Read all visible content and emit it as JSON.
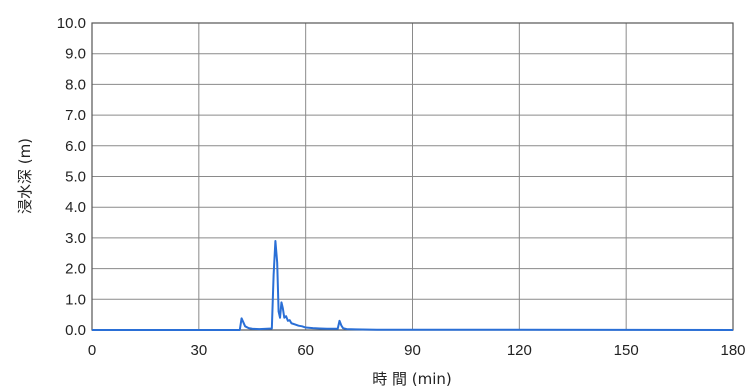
{
  "chart_data": {
    "type": "line",
    "xlabel": "時 間 (min)",
    "ylabel": "浸水深 (m)",
    "xlim": [
      0,
      180
    ],
    "ylim": [
      0,
      10
    ],
    "xticks": [
      0,
      30,
      60,
      90,
      120,
      150,
      180
    ],
    "yticks": [
      "0.0",
      "1.0",
      "2.0",
      "3.0",
      "4.0",
      "5.0",
      "6.0",
      "7.0",
      "8.0",
      "9.0",
      "10.0"
    ],
    "grid": true,
    "series_color": "#2a6fd6",
    "series": [
      {
        "x": [
          0,
          41.5,
          42.0,
          42.5,
          43.0,
          44.0,
          45.0,
          47.0,
          50.5,
          51.0,
          51.5,
          52.0,
          52.4,
          52.8,
          53.2,
          53.6,
          54.0,
          54.5,
          55.0,
          55.5,
          56.0,
          57.0,
          58.0,
          59.0,
          60.0,
          62.0,
          64.0,
          66.0,
          69.0,
          69.5,
          70.0,
          70.5,
          71.5,
          74.0,
          80.0,
          180
        ],
        "y": [
          0.0,
          0.0,
          0.38,
          0.25,
          0.12,
          0.06,
          0.04,
          0.03,
          0.05,
          1.8,
          2.9,
          2.2,
          0.6,
          0.4,
          0.9,
          0.7,
          0.4,
          0.45,
          0.3,
          0.32,
          0.22,
          0.18,
          0.14,
          0.12,
          0.08,
          0.06,
          0.05,
          0.04,
          0.04,
          0.3,
          0.15,
          0.06,
          0.03,
          0.02,
          0.01,
          0.0
        ]
      }
    ]
  }
}
